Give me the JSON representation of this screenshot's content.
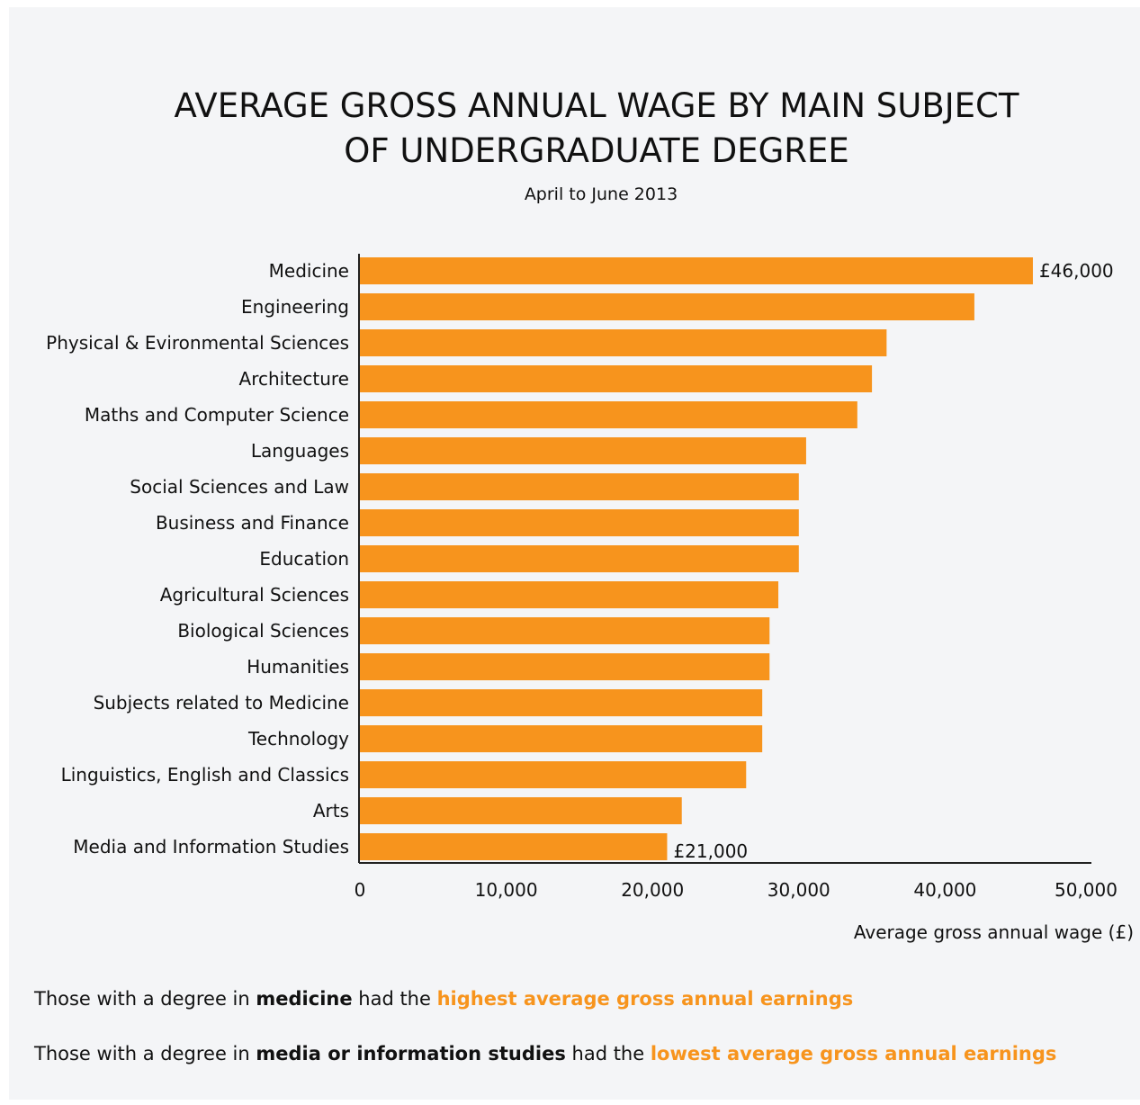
{
  "chart_data": {
    "type": "bar",
    "orientation": "horizontal",
    "title_line1": "AVERAGE GROSS ANNUAL WAGE BY MAIN SUBJECT",
    "title_line2": "OF UNDERGRADUATE DEGREE",
    "subtitle": "April to June 2013",
    "xlabel": "Average gross annual wage (£)",
    "ylabel": "",
    "xlim": [
      0,
      50000
    ],
    "x_ticks": [
      "0",
      "10,000",
      "20,000",
      "30,000",
      "40,000",
      "50,000"
    ],
    "categories": [
      "Medicine",
      "Engineering",
      "Physical & Evironmental Sciences",
      "Architecture",
      "Maths and Computer Science",
      "Languages",
      "Social Sciences and Law",
      "Business and Finance",
      "Education",
      "Agricultural Sciences",
      "Biological Sciences",
      "Humanities",
      "Subjects related to Medicine",
      "Technology",
      "Linguistics, English and Classics",
      "Arts",
      "Media and Information Studies"
    ],
    "values": [
      46000,
      42000,
      36000,
      35000,
      34000,
      30500,
      30000,
      30000,
      30000,
      28600,
      28000,
      28000,
      27500,
      27500,
      26400,
      22000,
      21000
    ],
    "data_labels": [
      {
        "index": 0,
        "text": "£46,000"
      },
      {
        "index": 16,
        "text": "£21,000"
      }
    ],
    "bar_color": "#f7941d",
    "grid": false
  },
  "notes": {
    "line1": {
      "prefix": "Those with a degree in ",
      "bold": "medicine",
      "middle": " had the ",
      "highlight": "highest average gross annual earnings"
    },
    "line2": {
      "prefix": "Those with a degree in ",
      "bold": "media or information studies",
      "middle": " had the ",
      "highlight": "lowest average gross annual earnings"
    }
  }
}
